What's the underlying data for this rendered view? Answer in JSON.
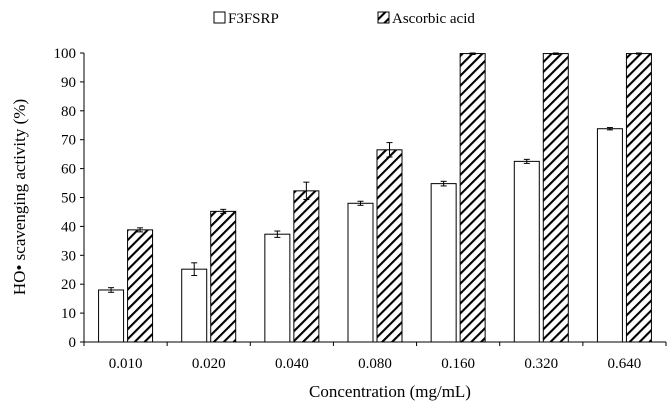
{
  "chart_data": {
    "type": "bar",
    "xlabel": "Concentration  (mg/mL)",
    "ylabel": "HO• scavenging activity  (%)",
    "categories": [
      "0.010",
      "0.020",
      "0.040",
      "0.080",
      "0.160",
      "0.320",
      "0.640"
    ],
    "ylim": [
      0,
      100
    ],
    "yticks": [
      0,
      10,
      20,
      30,
      40,
      50,
      60,
      70,
      80,
      90,
      100
    ],
    "grid": false,
    "legend_position": "top-center",
    "series": [
      {
        "name": "F3FSRP",
        "fill": "white",
        "values": [
          18.0,
          25.2,
          37.3,
          48.0,
          54.8,
          62.5,
          73.8
        ],
        "errors": [
          0.8,
          2.2,
          1.1,
          0.7,
          0.8,
          0.7,
          0.4
        ]
      },
      {
        "name": "Ascorbic acid",
        "fill": "hatched",
        "values": [
          38.8,
          45.2,
          52.3,
          66.5,
          99.8,
          99.8,
          99.8
        ],
        "errors": [
          0.7,
          0.7,
          3.0,
          2.5,
          0.3,
          0.3,
          0.2
        ]
      }
    ]
  }
}
